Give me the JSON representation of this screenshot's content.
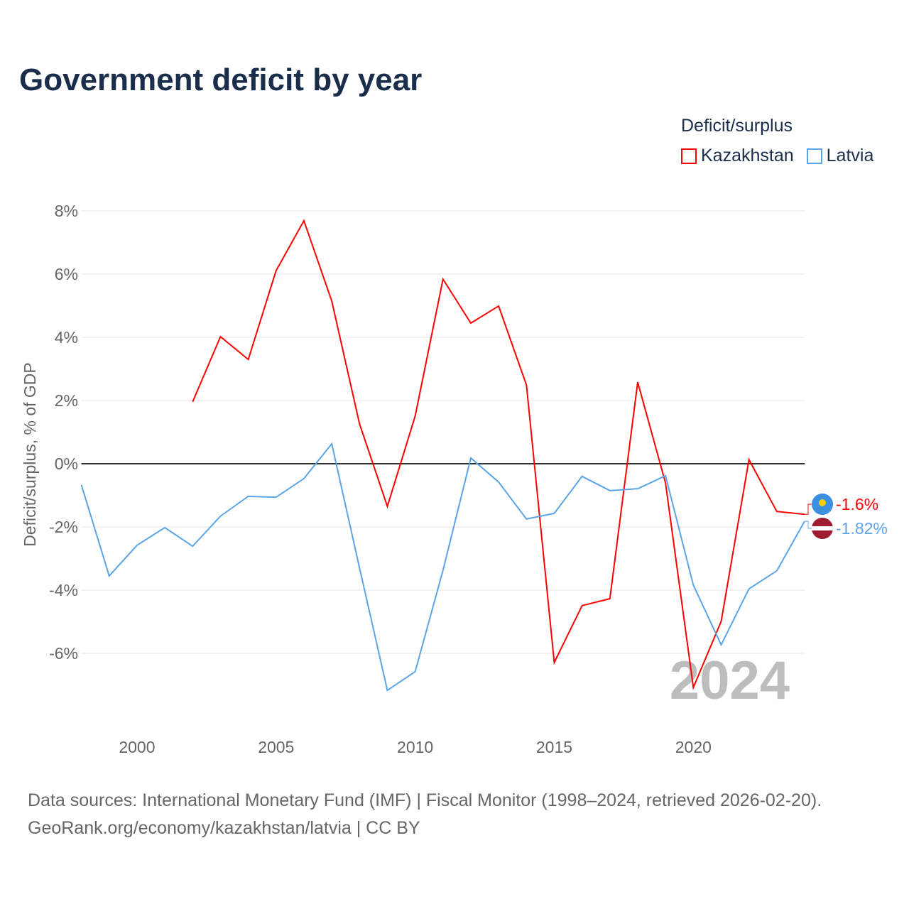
{
  "title": "Government deficit by year",
  "legend": {
    "title": "Deficit/surplus",
    "items": [
      "Kazakhstan",
      "Latvia"
    ]
  },
  "footer": {
    "line1": "Data sources: International Monetary Fund (IMF) | Fiscal Monitor (1998–2024, retrieved 2026-02-20).",
    "line2": "GeoRank.org/economy/kazakhstan/latvia | CC BY"
  },
  "colors": {
    "kazakhstan": "#ff0000",
    "latvia": "#5ba4e8"
  },
  "chart_data": {
    "type": "line",
    "title": "Government deficit by year",
    "xlabel": "",
    "ylabel": "Deficit/surplus, % of GDP",
    "xlim": [
      1998,
      2024
    ],
    "ylim": [
      -8,
      8
    ],
    "yticks": [
      8,
      6,
      4,
      2,
      0,
      -2,
      -4,
      -6
    ],
    "ytick_labels": [
      "8%",
      "6%",
      "4%",
      "2%",
      "0%",
      "-2%",
      "-4%",
      "-6%"
    ],
    "xticks": [
      2000,
      2005,
      2010,
      2015,
      2020
    ],
    "xtick_labels": [
      "2000",
      "2005",
      "2010",
      "2015",
      "2020"
    ],
    "watermark": "2024",
    "series": [
      {
        "name": "Kazakhstan",
        "end_label": "-1.6%",
        "x": [
          2002,
          2003,
          2004,
          2005,
          2006,
          2007,
          2008,
          2009,
          2010,
          2011,
          2012,
          2013,
          2014,
          2015,
          2016,
          2017,
          2018,
          2019,
          2020,
          2021,
          2022,
          2023,
          2024
        ],
        "values": [
          1.96,
          4.02,
          3.3,
          6.11,
          7.69,
          5.15,
          1.26,
          -1.35,
          1.51,
          5.84,
          4.45,
          4.99,
          2.49,
          -6.29,
          -4.49,
          -4.27,
          2.58,
          -0.61,
          -7.08,
          -4.99,
          0.13,
          -1.51,
          -1.6
        ]
      },
      {
        "name": "Latvia",
        "end_label": "-1.82%",
        "x": [
          1998,
          1999,
          2000,
          2001,
          2002,
          2003,
          2004,
          2005,
          2006,
          2007,
          2008,
          2009,
          2010,
          2011,
          2012,
          2013,
          2014,
          2015,
          2016,
          2017,
          2018,
          2019,
          2020,
          2021,
          2022,
          2023,
          2024
        ],
        "values": [
          -0.67,
          -3.55,
          -2.58,
          -2.02,
          -2.61,
          -1.66,
          -1.03,
          -1.06,
          -0.47,
          0.63,
          -3.3,
          -7.17,
          -6.58,
          -3.37,
          0.18,
          -0.58,
          -1.75,
          -1.57,
          -0.4,
          -0.85,
          -0.79,
          -0.38,
          -3.84,
          -5.73,
          -3.96,
          -3.39,
          -1.82
        ]
      }
    ]
  }
}
